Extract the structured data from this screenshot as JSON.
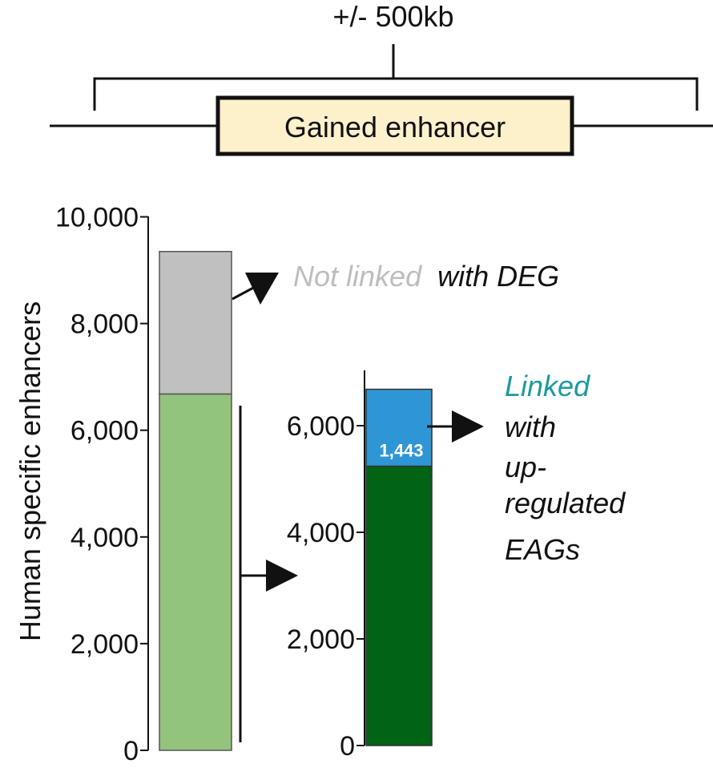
{
  "diagram": {
    "window_label": "+/- 500kb",
    "enhancer_label": "Gained enhancer",
    "enhancer_fill": "#fdf1cc"
  },
  "chart_data": [
    {
      "type": "bar",
      "stacked": true,
      "ylabel": "Human specific enhancers",
      "ylim": [
        0,
        10000
      ],
      "yticks": [
        0,
        2000,
        4000,
        6000,
        8000,
        10000
      ],
      "ytick_labels": [
        "0",
        "2,000",
        "4,000",
        "6,000",
        "8,000",
        "10,000"
      ],
      "segments": [
        {
          "key": "linked",
          "value": 6680,
          "color": "#93c47d"
        },
        {
          "key": "not_linked",
          "value": 2670,
          "color": "#c0c0c0"
        }
      ],
      "annotation": {
        "text_a": "Not linked",
        "text_a_color": "#bdbdbd",
        "text_b": "with DEG",
        "text_b_color": "#111111"
      }
    },
    {
      "type": "bar",
      "stacked": true,
      "ylim": [
        0,
        7000
      ],
      "yticks": [
        0,
        2000,
        4000,
        6000
      ],
      "ytick_labels": [
        "0",
        "2,000",
        "4,000",
        "6,000"
      ],
      "segments": [
        {
          "key": "other",
          "value": 5240,
          "color": "#006414"
        },
        {
          "key": "up",
          "value": 1443,
          "color": "#2f96d5",
          "label": "1,443"
        }
      ],
      "annotation": {
        "lines": [
          "Linked",
          "with",
          "up-",
          "regulated",
          "EAGs"
        ],
        "first_line_color": "#1a9aa0",
        "rest_color": "#111111"
      }
    }
  ]
}
